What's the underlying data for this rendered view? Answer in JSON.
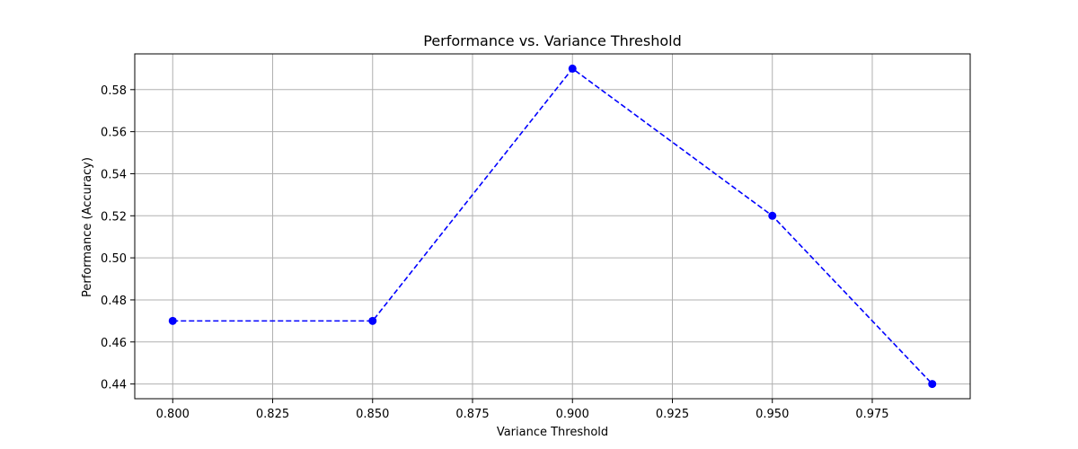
{
  "chart_data": {
    "type": "line",
    "title": "Performance vs. Variance Threshold",
    "xlabel": "Variance Threshold",
    "ylabel": "Performance (Accuracy)",
    "xlim": [
      0.7905,
      0.9995
    ],
    "ylim": [
      0.433,
      0.597
    ],
    "xticks": [
      0.8,
      0.825,
      0.85,
      0.875,
      0.9,
      0.925,
      0.95,
      0.975
    ],
    "xtick_labels": [
      "0.800",
      "0.825",
      "0.850",
      "0.875",
      "0.900",
      "0.925",
      "0.950",
      "0.975"
    ],
    "yticks": [
      0.44,
      0.46,
      0.48,
      0.5,
      0.52,
      0.54,
      0.56,
      0.58
    ],
    "ytick_labels": [
      "0.44",
      "0.46",
      "0.48",
      "0.50",
      "0.52",
      "0.54",
      "0.56",
      "0.58"
    ],
    "grid": true,
    "series": [
      {
        "color": "#0000ff",
        "line_style": "dashed",
        "marker": "circle",
        "x": [
          0.8,
          0.85,
          0.9,
          0.95,
          0.99
        ],
        "y": [
          0.47,
          0.47,
          0.59,
          0.52,
          0.44
        ]
      }
    ]
  }
}
